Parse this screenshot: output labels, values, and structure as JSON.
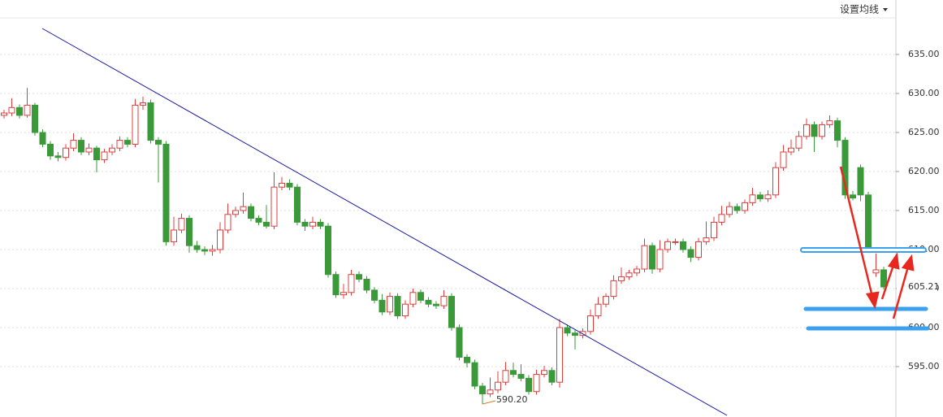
{
  "chart_data": {
    "type": "candlestick",
    "menu_label": "设置均线",
    "ylim": [
      588.54,
      641.98
    ],
    "yticks": [
      {
        "value": 595,
        "label": "595.00"
      },
      {
        "value": 600,
        "label": "600.00"
      },
      {
        "value": 605,
        "label": "605.00"
      },
      {
        "value": 610,
        "label": "610.00"
      },
      {
        "value": 615,
        "label": "615.00"
      },
      {
        "value": 620,
        "label": "620.00"
      },
      {
        "value": 625,
        "label": "625.00"
      },
      {
        "value": 630,
        "label": "630.00"
      },
      {
        "value": 635,
        "label": "635.00"
      }
    ],
    "grid": true,
    "up_color": "#e03c3c",
    "down_color": "#3a9a3a",
    "last_price": 605.21,
    "min_label": {
      "value": 590.2,
      "label": "590.20"
    },
    "candles": [
      [
        627.2,
        627.9,
        626.8,
        627.5
      ],
      [
        627.5,
        629.4,
        627.1,
        628.2
      ],
      [
        628.2,
        628.6,
        626.8,
        627.2
      ],
      [
        627.2,
        630.7,
        626.9,
        628.5
      ],
      [
        628.5,
        628.8,
        624.6,
        625
      ],
      [
        625,
        625.4,
        623.1,
        623.5
      ],
      [
        623.5,
        623.9,
        621.5,
        622
      ],
      [
        622,
        622.5,
        621.3,
        621.8
      ],
      [
        621.8,
        623.5,
        621.4,
        623
      ],
      [
        623,
        624.9,
        622.6,
        624
      ],
      [
        624,
        624.4,
        622.1,
        622.5
      ],
      [
        622.5,
        623.6,
        622.1,
        623
      ],
      [
        623,
        623.3,
        619.9,
        621.5
      ],
      [
        621.5,
        622.9,
        621.1,
        622.5
      ],
      [
        622.5,
        623.5,
        622.1,
        623
      ],
      [
        623,
        624.5,
        622.6,
        624
      ],
      [
        624,
        624.4,
        623.1,
        623.5
      ],
      [
        623.5,
        629.3,
        623.1,
        628.5
      ],
      [
        628.5,
        629.6,
        627.9,
        628.8
      ],
      [
        628.8,
        629.2,
        623.6,
        624
      ],
      [
        624,
        624.4,
        618.6,
        623.5
      ],
      [
        623.5,
        623.9,
        610.5,
        611
      ],
      [
        611,
        614.2,
        610.5,
        612.5
      ],
      [
        612.5,
        614.6,
        612.1,
        614
      ],
      [
        614,
        614.4,
        609.6,
        610.5
      ],
      [
        610.5,
        611.1,
        609.6,
        610
      ],
      [
        610,
        610.4,
        609.3,
        609.8
      ],
      [
        609.8,
        610.6,
        609.2,
        610
      ],
      [
        610,
        613.5,
        609.5,
        612.5
      ],
      [
        612.5,
        615.9,
        612.1,
        614.5
      ],
      [
        614.5,
        615.5,
        614.1,
        615
      ],
      [
        615,
        617.3,
        614.6,
        615.5
      ],
      [
        615.5,
        615.9,
        613.6,
        614
      ],
      [
        614,
        614.4,
        613.1,
        613.5
      ],
      [
        613.5,
        615.7,
        612.7,
        613
      ],
      [
        613,
        619.9,
        612.6,
        618
      ],
      [
        618,
        619.3,
        617.6,
        618.5
      ],
      [
        618.5,
        619,
        617.6,
        618
      ],
      [
        618,
        618.4,
        613.1,
        613.5
      ],
      [
        613.5,
        613.9,
        612.4,
        613
      ],
      [
        613,
        614.2,
        612.6,
        613.5
      ],
      [
        613.5,
        613.9,
        612.6,
        613
      ],
      [
        613,
        613.4,
        606.4,
        606.8
      ],
      [
        606.8,
        607.2,
        603.8,
        604.2
      ],
      [
        604.2,
        605.6,
        603.7,
        604.5
      ],
      [
        604.5,
        607.4,
        604.1,
        606.8
      ],
      [
        606.8,
        607.2,
        605.8,
        606.2
      ],
      [
        606.2,
        606.6,
        604.4,
        604.8
      ],
      [
        604.8,
        605.2,
        603.1,
        603.5
      ],
      [
        603.5,
        604.3,
        601.6,
        602
      ],
      [
        602,
        604.5,
        601.6,
        604
      ],
      [
        604,
        604.4,
        601.1,
        601.5
      ],
      [
        601.5,
        603.5,
        601.1,
        603
      ],
      [
        603,
        605,
        602.6,
        604.5
      ],
      [
        604.5,
        604.9,
        603.1,
        603.5
      ],
      [
        603.5,
        603.9,
        602.6,
        603
      ],
      [
        603,
        603.4,
        602.4,
        602.8
      ],
      [
        602.8,
        604.8,
        602.4,
        604
      ],
      [
        604,
        604.4,
        599.6,
        600
      ],
      [
        600,
        600.4,
        595.8,
        596.2
      ],
      [
        596.2,
        596.6,
        594.9,
        595.5
      ],
      [
        595.5,
        595.9,
        592.1,
        592.5
      ],
      [
        592.5,
        592.9,
        590.2,
        591.5
      ],
      [
        591.5,
        593.6,
        591.1,
        592
      ],
      [
        592,
        594.4,
        591.6,
        593
      ],
      [
        593,
        595.6,
        592.6,
        594.5
      ],
      [
        594.5,
        595.5,
        593.6,
        594
      ],
      [
        594,
        595.3,
        593.1,
        593.5
      ],
      [
        593.5,
        593.9,
        591.4,
        591.8
      ],
      [
        591.8,
        594.6,
        591.4,
        594
      ],
      [
        594,
        595.1,
        593.6,
        594.5
      ],
      [
        594.5,
        594.9,
        592.6,
        593
      ],
      [
        593,
        601.1,
        592.3,
        600
      ],
      [
        600,
        600.4,
        598.9,
        599.3
      ],
      [
        599.3,
        599.7,
        597.2,
        599
      ],
      [
        599,
        599.9,
        598.6,
        599.5
      ],
      [
        599.5,
        602.3,
        599.1,
        601.5
      ],
      [
        601.5,
        603.9,
        601.1,
        603
      ],
      [
        603,
        604.4,
        602.6,
        604
      ],
      [
        604,
        606.7,
        603.6,
        606
      ],
      [
        606,
        607.7,
        605.6,
        606.5
      ],
      [
        606.5,
        607.4,
        606.1,
        607
      ],
      [
        607,
        607.9,
        606.6,
        607.5
      ],
      [
        607.5,
        611.4,
        607.1,
        610.5
      ],
      [
        610.5,
        610.9,
        606.9,
        607.5
      ],
      [
        607.5,
        611.2,
        607.1,
        610
      ],
      [
        610,
        611.4,
        609.6,
        611
      ],
      [
        611,
        611.4,
        610.6,
        611
      ],
      [
        611,
        611.4,
        609.6,
        610
      ],
      [
        610,
        610.4,
        608.4,
        609
      ],
      [
        609,
        611.5,
        608.6,
        611
      ],
      [
        611,
        613.6,
        610.6,
        611.5
      ],
      [
        611.5,
        614.2,
        611.1,
        613.5
      ],
      [
        613.5,
        615.6,
        613.1,
        614.5
      ],
      [
        614.5,
        616.1,
        614.1,
        615.5
      ],
      [
        615.5,
        615.9,
        614.6,
        615
      ],
      [
        615,
        616.4,
        614.6,
        616
      ],
      [
        616,
        617.9,
        615.6,
        617
      ],
      [
        617,
        617.4,
        616.1,
        616.5
      ],
      [
        616.5,
        617.6,
        616.1,
        617
      ],
      [
        617,
        621.2,
        616.6,
        620.5
      ],
      [
        620.5,
        623.4,
        620.1,
        622.5
      ],
      [
        622.5,
        624.1,
        622.1,
        623
      ],
      [
        623,
        625.2,
        622.6,
        624.5
      ],
      [
        624.5,
        626.8,
        624.1,
        626
      ],
      [
        626,
        626.4,
        622.5,
        624.5
      ],
      [
        624.5,
        626.4,
        624.1,
        626
      ],
      [
        626,
        627.2,
        625.6,
        626.5
      ],
      [
        626.5,
        626.9,
        623.1,
        624
      ],
      [
        624,
        624.4,
        616.5,
        617
      ],
      [
        617,
        617.5,
        616.3,
        616.6
      ],
      [
        620.5,
        620.9,
        616.2,
        617
      ],
      [
        617,
        617.4,
        609.6,
        610
      ],
      [
        607,
        609.5,
        606.5,
        607.4
      ],
      [
        607.4,
        607.8,
        604.9,
        605.21
      ]
    ]
  }
}
